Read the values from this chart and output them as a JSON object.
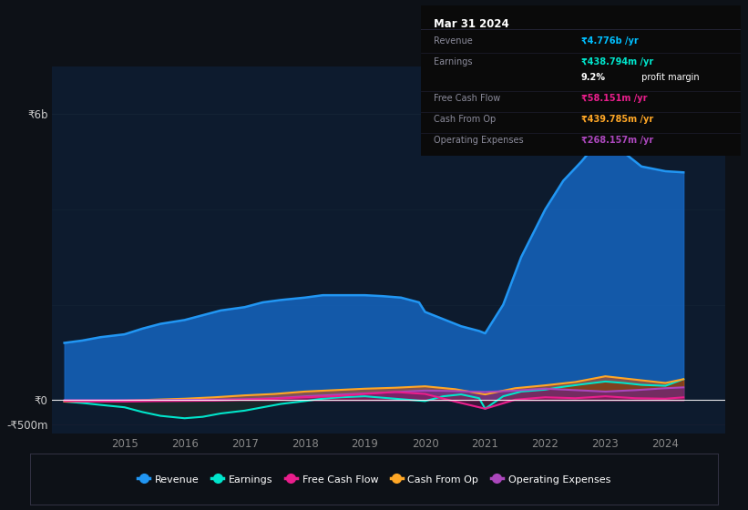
{
  "bg_color": "#0d1117",
  "plot_bg_color": "#0d1b2e",
  "xlim": [
    2013.8,
    2025.0
  ],
  "ylim": [
    -700,
    7000
  ],
  "yticks_vals": [
    -500,
    0,
    6000
  ],
  "ytick_labels": [
    "-₹500m",
    "₹0",
    "₹6b"
  ],
  "xticks": [
    2015,
    2016,
    2017,
    2018,
    2019,
    2020,
    2021,
    2022,
    2023,
    2024
  ],
  "legend": [
    {
      "label": "Revenue",
      "color": "#2196f3"
    },
    {
      "label": "Earnings",
      "color": "#00e5cc"
    },
    {
      "label": "Free Cash Flow",
      "color": "#e91e8c"
    },
    {
      "label": "Cash From Op",
      "color": "#ffa726"
    },
    {
      "label": "Operating Expenses",
      "color": "#ab47bc"
    }
  ],
  "revenue_x": [
    2014.0,
    2014.3,
    2014.6,
    2015.0,
    2015.3,
    2015.6,
    2016.0,
    2016.3,
    2016.6,
    2017.0,
    2017.3,
    2017.6,
    2018.0,
    2018.3,
    2018.6,
    2019.0,
    2019.3,
    2019.6,
    2019.9,
    2020.0,
    2020.3,
    2020.6,
    2020.9,
    2021.0,
    2021.3,
    2021.6,
    2022.0,
    2022.3,
    2022.6,
    2023.0,
    2023.3,
    2023.6,
    2024.0,
    2024.3
  ],
  "revenue_y": [
    1200,
    1250,
    1320,
    1380,
    1500,
    1600,
    1680,
    1780,
    1880,
    1950,
    2050,
    2100,
    2150,
    2200,
    2200,
    2200,
    2180,
    2150,
    2050,
    1850,
    1700,
    1550,
    1450,
    1400,
    2000,
    3000,
    4000,
    4600,
    5000,
    5600,
    5200,
    4900,
    4800,
    4776
  ],
  "earnings_x": [
    2014.0,
    2014.3,
    2014.6,
    2015.0,
    2015.3,
    2015.6,
    2016.0,
    2016.3,
    2016.6,
    2017.0,
    2017.3,
    2017.6,
    2018.0,
    2018.3,
    2018.6,
    2019.0,
    2019.3,
    2019.6,
    2020.0,
    2020.3,
    2020.6,
    2020.9,
    2021.0,
    2021.3,
    2021.6,
    2022.0,
    2022.3,
    2022.6,
    2023.0,
    2023.3,
    2023.6,
    2024.0,
    2024.3
  ],
  "earnings_y": [
    -30,
    -60,
    -100,
    -150,
    -250,
    -330,
    -380,
    -350,
    -280,
    -220,
    -150,
    -80,
    -20,
    30,
    60,
    80,
    50,
    20,
    -20,
    80,
    120,
    40,
    -180,
    80,
    180,
    220,
    280,
    330,
    390,
    360,
    320,
    300,
    439
  ],
  "fcf_x": [
    2014.0,
    2014.5,
    2015.0,
    2015.5,
    2016.0,
    2016.5,
    2017.0,
    2017.5,
    2018.0,
    2018.5,
    2019.0,
    2019.5,
    2020.0,
    2020.5,
    2021.0,
    2021.5,
    2022.0,
    2022.5,
    2023.0,
    2023.5,
    2024.0,
    2024.3
  ],
  "fcf_y": [
    -20,
    -30,
    -30,
    -20,
    -15,
    -10,
    10,
    30,
    60,
    80,
    130,
    170,
    130,
    -30,
    -180,
    10,
    60,
    40,
    80,
    40,
    30,
    58
  ],
  "cashop_x": [
    2014.0,
    2014.5,
    2015.0,
    2015.5,
    2016.0,
    2016.5,
    2017.0,
    2017.5,
    2018.0,
    2018.5,
    2019.0,
    2019.5,
    2020.0,
    2020.5,
    2021.0,
    2021.5,
    2022.0,
    2022.5,
    2023.0,
    2023.5,
    2024.0,
    2024.3
  ],
  "cashop_y": [
    -30,
    -20,
    -10,
    10,
    30,
    60,
    100,
    130,
    180,
    210,
    240,
    260,
    290,
    230,
    120,
    250,
    310,
    380,
    500,
    430,
    360,
    440
  ],
  "opex_x": [
    2014.0,
    2014.5,
    2015.0,
    2015.5,
    2016.0,
    2016.5,
    2017.0,
    2017.5,
    2018.0,
    2018.5,
    2019.0,
    2019.5,
    2020.0,
    2020.5,
    2021.0,
    2021.5,
    2022.0,
    2022.5,
    2023.0,
    2023.5,
    2024.0,
    2024.3
  ],
  "opex_y": [
    0,
    0,
    0,
    0,
    5,
    10,
    20,
    40,
    80,
    110,
    140,
    170,
    200,
    190,
    170,
    200,
    240,
    210,
    180,
    210,
    250,
    268
  ],
  "table": {
    "title": "Mar 31 2024",
    "rows": [
      {
        "label": "Revenue",
        "value": "₹4.776b /yr",
        "vcolor": "#00bfff",
        "extra": null
      },
      {
        "label": "Earnings",
        "value": "₹438.794m /yr",
        "vcolor": "#00e5cc",
        "extra": null
      },
      {
        "label": "",
        "value": "9.2%",
        "vcolor": "#ffffff",
        "extra": " profit margin"
      },
      {
        "label": "Free Cash Flow",
        "value": "₹58.151m /yr",
        "vcolor": "#e91e8c",
        "extra": null
      },
      {
        "label": "Cash From Op",
        "value": "₹439.785m /yr",
        "vcolor": "#ffa726",
        "extra": null
      },
      {
        "label": "Operating Expenses",
        "value": "₹268.157m /yr",
        "vcolor": "#ab47bc",
        "extra": null
      }
    ]
  }
}
